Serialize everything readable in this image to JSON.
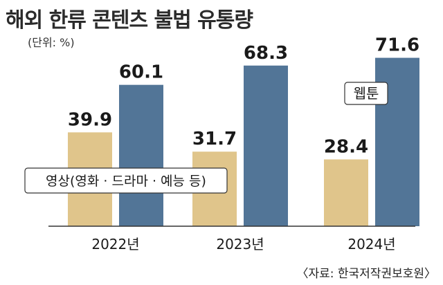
{
  "title": "해외 한류 콘텐츠 불법 유통량",
  "unit": "(단위: %)",
  "source": "〈자료: 한국저작권보호원〉",
  "colors": {
    "video": "#e0c58b",
    "webtoon": "#527597",
    "axis": "#333333",
    "label_bg": "#ffffff"
  },
  "chart_data": {
    "type": "bar",
    "title": "해외 한류 콘텐츠 불법 유통량",
    "ylabel": "(단위: %)",
    "categories": [
      "2022년",
      "2023년",
      "2024년"
    ],
    "series": [
      {
        "name": "영상(영화 · 드라마 · 예능 등)",
        "values": [
          39.9,
          31.7,
          28.4
        ]
      },
      {
        "name": "웹툰",
        "values": [
          60.1,
          68.3,
          71.6
        ]
      }
    ],
    "ylim": [
      0,
      80
    ],
    "grid": false,
    "legend": "inline labels"
  }
}
